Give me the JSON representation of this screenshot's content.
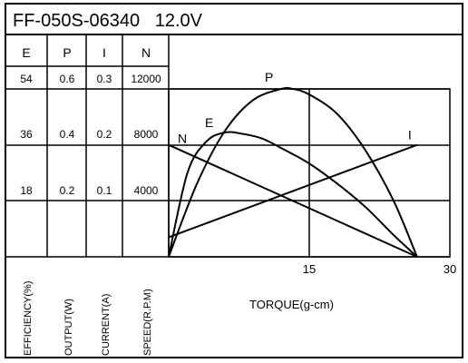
{
  "chart_data": {
    "type": "line",
    "title": "FF-050S-06340   12.0V",
    "xlabel": "TORQUE(g-cm)",
    "x_ticks": [
      "15",
      "30"
    ],
    "xlim": [
      0,
      30
    ],
    "axes": [
      {
        "key": "E",
        "label": "EFFICIENCY(%)",
        "ticks": [
          "54",
          "36",
          "18"
        ],
        "ylim": [
          0,
          54
        ]
      },
      {
        "key": "P",
        "label": "OUTPUT(W)",
        "ticks": [
          "0.6",
          "0.4",
          "0.2"
        ],
        "ylim": [
          0,
          0.6
        ]
      },
      {
        "key": "I",
        "label": "CURRENT(A)",
        "ticks": [
          "0.3",
          "0.2",
          "0.1"
        ],
        "ylim": [
          0,
          0.3
        ]
      },
      {
        "key": "N",
        "label": "SPEED(R.P.M)",
        "ticks": [
          "12000",
          "8000",
          "4000"
        ],
        "ylim": [
          0,
          12000
        ]
      }
    ],
    "series": [
      {
        "name": "N",
        "axis": "N",
        "x": [
          0,
          26.5
        ],
        "y": [
          8000,
          0
        ]
      },
      {
        "name": "I",
        "axis": "I",
        "x": [
          0,
          26.5
        ],
        "y": [
          0.035,
          0.2
        ]
      },
      {
        "name": "P",
        "axis": "P",
        "x": [
          0,
          3,
          6,
          9,
          12,
          13.25,
          15,
          18,
          21,
          24,
          26.5
        ],
        "y": [
          0,
          0.26,
          0.45,
          0.56,
          0.6,
          0.6,
          0.58,
          0.51,
          0.38,
          0.2,
          0
        ]
      },
      {
        "name": "E",
        "axis": "E",
        "x": [
          0,
          2,
          4,
          6,
          8,
          10,
          12,
          15,
          18,
          21,
          24,
          26.5
        ],
        "y": [
          0,
          27,
          37,
          40,
          39.5,
          38,
          35,
          30,
          23.5,
          16,
          7,
          0
        ]
      }
    ],
    "grid": true
  }
}
